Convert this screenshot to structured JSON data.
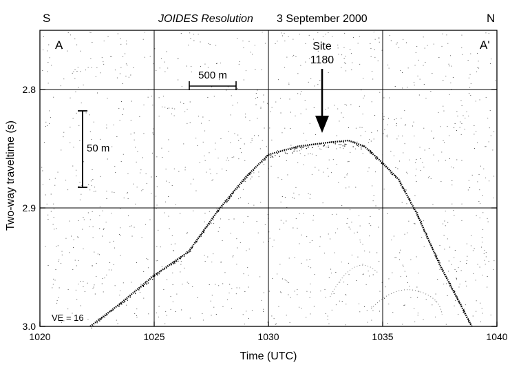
{
  "header": {
    "left_dir": "S",
    "right_dir": "N",
    "ship": "JOIDES Resolution",
    "date": "3 September 2000"
  },
  "profile_labels": {
    "start": "A",
    "end": "A'"
  },
  "site": {
    "label": "Site",
    "number": "1180"
  },
  "scale_bars": {
    "horizontal": "500 m",
    "vertical": "50 m"
  },
  "vertical_exaggeration": "VE = 16",
  "chart_data": {
    "type": "seismic-profile",
    "xlabel": "Time (UTC)",
    "ylabel": "Two-way traveltime (s)",
    "xlim": [
      1020,
      1040
    ],
    "ylim": [
      3.0,
      2.75
    ],
    "xticks": [
      "1020",
      "1025",
      "1030",
      "1035",
      "1040"
    ],
    "yticks": [
      "2.8",
      "2.9",
      "3.0"
    ],
    "seafloor": {
      "x": [
        1022.2,
        1023.5,
        1025,
        1026.5,
        1027.8,
        1029,
        1030,
        1031.3,
        1032.5,
        1033.5,
        1034.2,
        1035,
        1035.7,
        1036.5,
        1037.5,
        1038.9
      ],
      "y": [
        3.0,
        2.981,
        2.957,
        2.937,
        2.902,
        2.874,
        2.855,
        2.848,
        2.845,
        2.843,
        2.848,
        2.862,
        2.876,
        2.905,
        2.948,
        3.0
      ]
    },
    "site_time": 1032.3
  }
}
